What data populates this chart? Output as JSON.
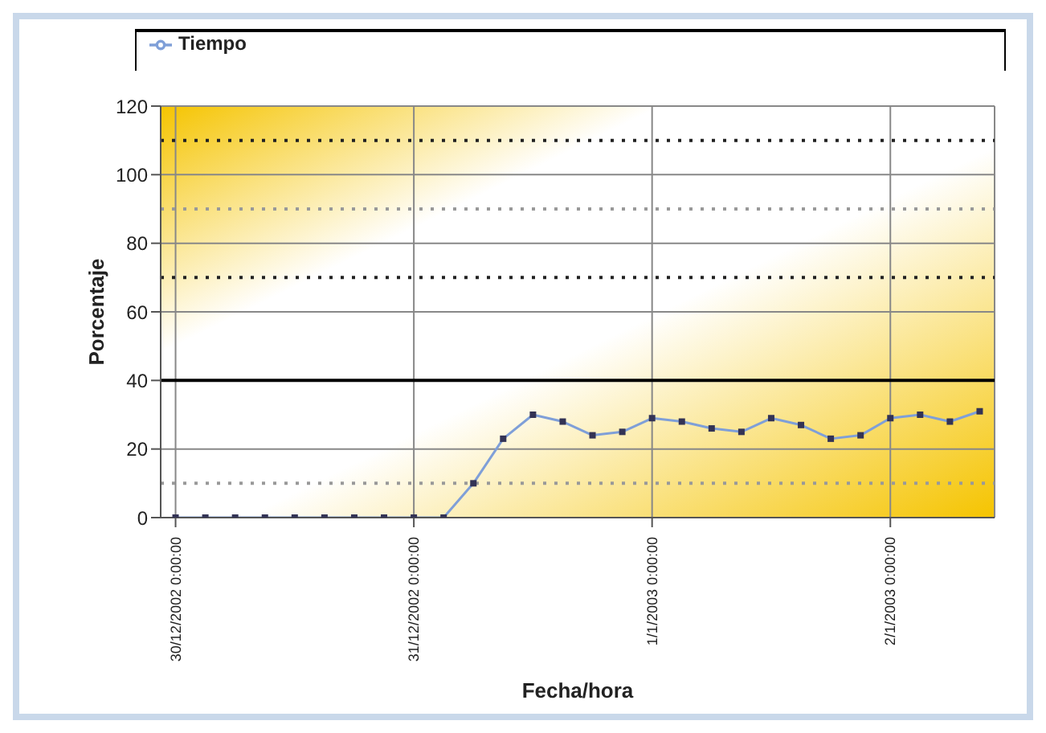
{
  "chart_data": {
    "type": "line",
    "xlabel": "Fecha/hora",
    "ylabel": "Porcentaje",
    "categories": [
      "30/12/2002 0:00:00",
      null,
      null,
      null,
      null,
      null,
      null,
      null,
      "31/12/2002 0:00:00",
      null,
      null,
      null,
      null,
      null,
      null,
      null,
      "1/1/2003 0:00:00",
      null,
      null,
      null,
      null,
      null,
      null,
      null,
      "2/1/2003 0:00:00",
      null,
      null,
      null
    ],
    "series": [
      {
        "name": "Tiempo",
        "color": "#7f9fd8",
        "values": [
          0,
          0,
          0,
          0,
          0,
          0,
          0,
          0,
          0,
          0,
          10,
          23,
          30,
          28,
          24,
          25,
          29,
          28,
          26,
          25,
          29,
          27,
          23,
          24,
          29,
          30,
          28,
          31
        ]
      }
    ],
    "ylim": [
      0,
      120
    ],
    "yticks": [
      0,
      20,
      40,
      60,
      80,
      100,
      120
    ],
    "grid": true,
    "legend": "top",
    "marker": "square",
    "line_style": "solid",
    "ref_lines": [
      {
        "axis": "y",
        "value": 40,
        "color": "#000000",
        "line_style": "solid"
      },
      {
        "axis": "y",
        "value": 70,
        "color": "#222222",
        "line_style": "dotted"
      },
      {
        "axis": "y",
        "value": 110,
        "color": "#222222",
        "line_style": "dotted"
      },
      {
        "axis": "y",
        "value": 90,
        "color": "#999999",
        "line_style": "dotted"
      },
      {
        "axis": "y",
        "value": 10,
        "color": "#999999",
        "line_style": "dotted"
      }
    ]
  }
}
